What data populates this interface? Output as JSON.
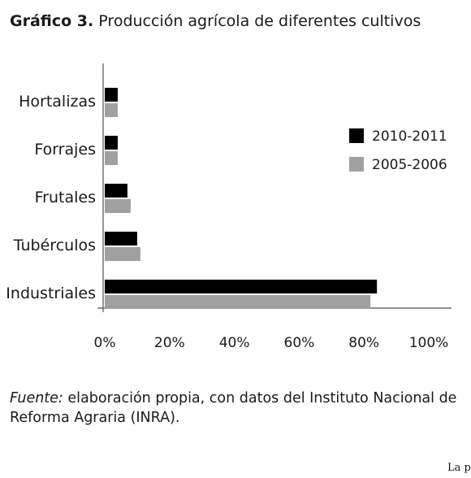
{
  "header": {
    "label": "Gráfico 3.",
    "title": "Producción agrícola de diferentes cultivos"
  },
  "chart_data": {
    "type": "bar",
    "orientation": "horizontal",
    "categories": [
      "Hortalizas",
      "Forrajes",
      "Frutales",
      "Tubérculos",
      "Industriales"
    ],
    "series": [
      {
        "name": "2010-2011",
        "values": [
          4,
          4,
          7,
          10,
          84
        ],
        "color": "#000000"
      },
      {
        "name": "2005-2006",
        "values": [
          4,
          4,
          8,
          11,
          82
        ],
        "color": "#a0a0a0"
      }
    ],
    "x_ticks": [
      "0%",
      "20%",
      "40%",
      "60%",
      "80%",
      "100%"
    ],
    "xlim": [
      0,
      100
    ],
    "legend_position": "right",
    "grid": false
  },
  "source": {
    "prefix": "Fuente:",
    "text": " elaboración propia, con datos del Instituto Nacional de Reforma Agraria (INRA)."
  },
  "footer": {
    "text": "La pr"
  }
}
